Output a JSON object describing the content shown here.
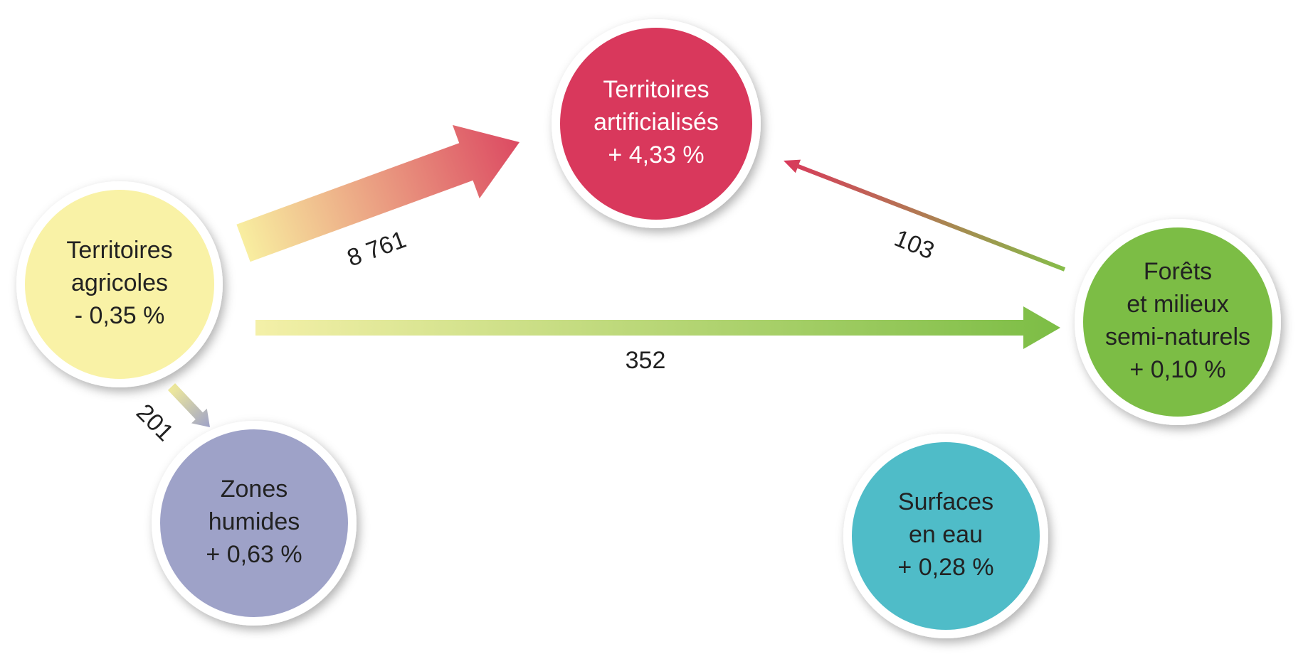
{
  "nodes": [
    {
      "lines": [
        "Territoires",
        "agricoles",
        "- 0,35 %"
      ]
    },
    {
      "lines": [
        "Territoires",
        "artificialisés",
        "+ 4,33 %"
      ]
    },
    {
      "lines": [
        "Forêts",
        "et milieux",
        "semi-naturels",
        "+ 0,10 %"
      ]
    },
    {
      "lines": [
        "Zones",
        "humides",
        "+ 0,63 %"
      ]
    },
    {
      "lines": [
        "Surfaces",
        "en eau",
        "+ 0,28 %"
      ]
    }
  ],
  "edges": [
    {
      "from": 0,
      "to": 1,
      "label": "8 761"
    },
    {
      "from": 0,
      "to": 2,
      "label": "352"
    },
    {
      "from": 2,
      "to": 1,
      "label": "103"
    },
    {
      "from": 0,
      "to": 3,
      "label": "201"
    }
  ]
}
